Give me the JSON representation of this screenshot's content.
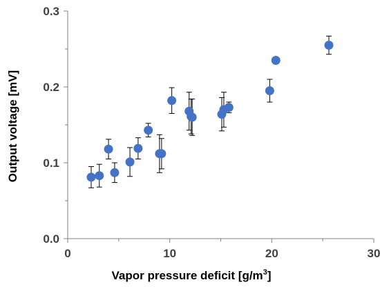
{
  "chart_data": {
    "type": "scatter",
    "title": "",
    "xlabel": {
      "prefix": "Vapor pressure deficit [g/m",
      "sup": "3",
      "suffix": "]"
    },
    "ylabel": "Output voltage [mV]",
    "xlim": [
      0,
      30
    ],
    "ylim": [
      0.0,
      0.3
    ],
    "xticks": [
      0,
      10,
      20,
      30
    ],
    "xtick_labels": [
      "0",
      "10",
      "20",
      "30"
    ],
    "xminor_ticks": [
      5,
      15,
      25
    ],
    "yticks": [
      0.0,
      0.1,
      0.2,
      0.3
    ],
    "ytick_labels": [
      "0.0",
      "0.1",
      "0.2",
      "0.3"
    ],
    "yminor_ticks": [
      0.05,
      0.15,
      0.25
    ],
    "grid": false,
    "legend": "none",
    "marker_color": "#4472C4",
    "errorbar_color": "#000000",
    "series": [
      {
        "points": [
          {
            "x": 2.3,
            "y": 0.081,
            "err": 0.014
          },
          {
            "x": 3.1,
            "y": 0.083,
            "err": 0.015
          },
          {
            "x": 4.0,
            "y": 0.118,
            "err": 0.013
          },
          {
            "x": 4.6,
            "y": 0.087,
            "err": 0.013
          },
          {
            "x": 6.1,
            "y": 0.101,
            "err": 0.019
          },
          {
            "x": 6.9,
            "y": 0.119,
            "err": 0.014
          },
          {
            "x": 7.9,
            "y": 0.143,
            "err": 0.009
          },
          {
            "x": 9.0,
            "y": 0.112,
            "err": 0.025
          },
          {
            "x": 9.2,
            "y": 0.112,
            "err": 0.02
          },
          {
            "x": 10.2,
            "y": 0.182,
            "err": 0.017
          },
          {
            "x": 11.9,
            "y": 0.168,
            "err": 0.025
          },
          {
            "x": 12.1,
            "y": 0.161,
            "err": 0.023
          },
          {
            "x": 12.2,
            "y": 0.16,
            "err": 0.024
          },
          {
            "x": 15.1,
            "y": 0.164,
            "err": 0.022
          },
          {
            "x": 15.3,
            "y": 0.17,
            "err": 0.023
          },
          {
            "x": 15.8,
            "y": 0.173,
            "err": 0.007
          },
          {
            "x": 19.8,
            "y": 0.195,
            "err": 0.015
          },
          {
            "x": 20.4,
            "y": 0.235,
            "err": 0.0
          },
          {
            "x": 25.6,
            "y": 0.255,
            "err": 0.012
          }
        ]
      }
    ]
  }
}
